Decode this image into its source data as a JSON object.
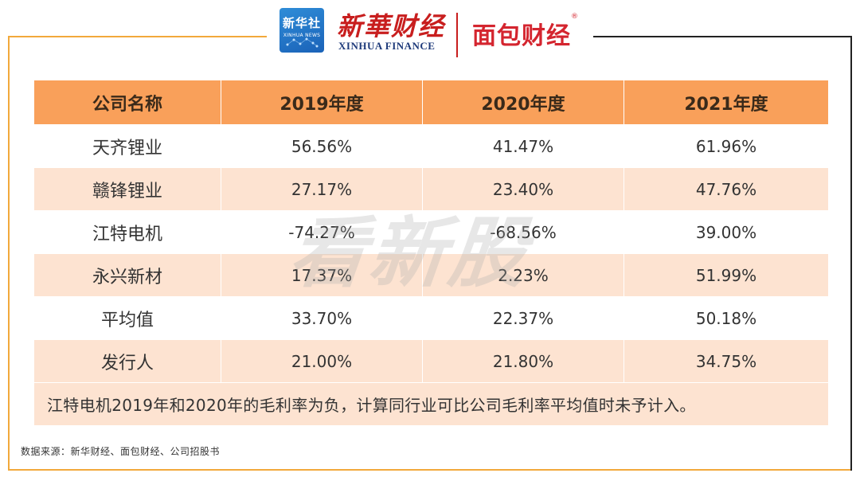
{
  "header": {
    "badge_cn": "新华社",
    "badge_en": "XINHUA NEWS",
    "brand_title": "新華财经",
    "brand_sub": "XINHUA FINANCE",
    "partner_title": "面包财经",
    "partner_reg": "®"
  },
  "table": {
    "headers": [
      "公司名称",
      "2019年度",
      "2020年度",
      "2021年度"
    ],
    "rows": [
      [
        "天齐锂业",
        "56.56%",
        "41.47%",
        "61.96%"
      ],
      [
        "赣锋锂业",
        "27.17%",
        "23.40%",
        "47.76%"
      ],
      [
        "江特电机",
        "-74.27%",
        "-68.56%",
        "39.00%"
      ],
      [
        "永兴新材",
        "17.37%",
        "2.23%",
        "51.99%"
      ],
      [
        "平均值",
        "33.70%",
        "22.37%",
        "50.18%"
      ],
      [
        "发行人",
        "21.00%",
        "21.80%",
        "34.75%"
      ]
    ],
    "note": "江特电机2019年和2020年的毛利率为负，计算同行业可比公司毛利率平均值时未予计入。"
  },
  "watermark": "看新股",
  "source": "数据来源：新华财经、面包财经、公司招股书",
  "colors": {
    "header_bg": "#f9a05a",
    "row_alt_bg": "#fde3d1",
    "frame_orange": "#f2a93b",
    "brand_red": "#c81e1e"
  }
}
